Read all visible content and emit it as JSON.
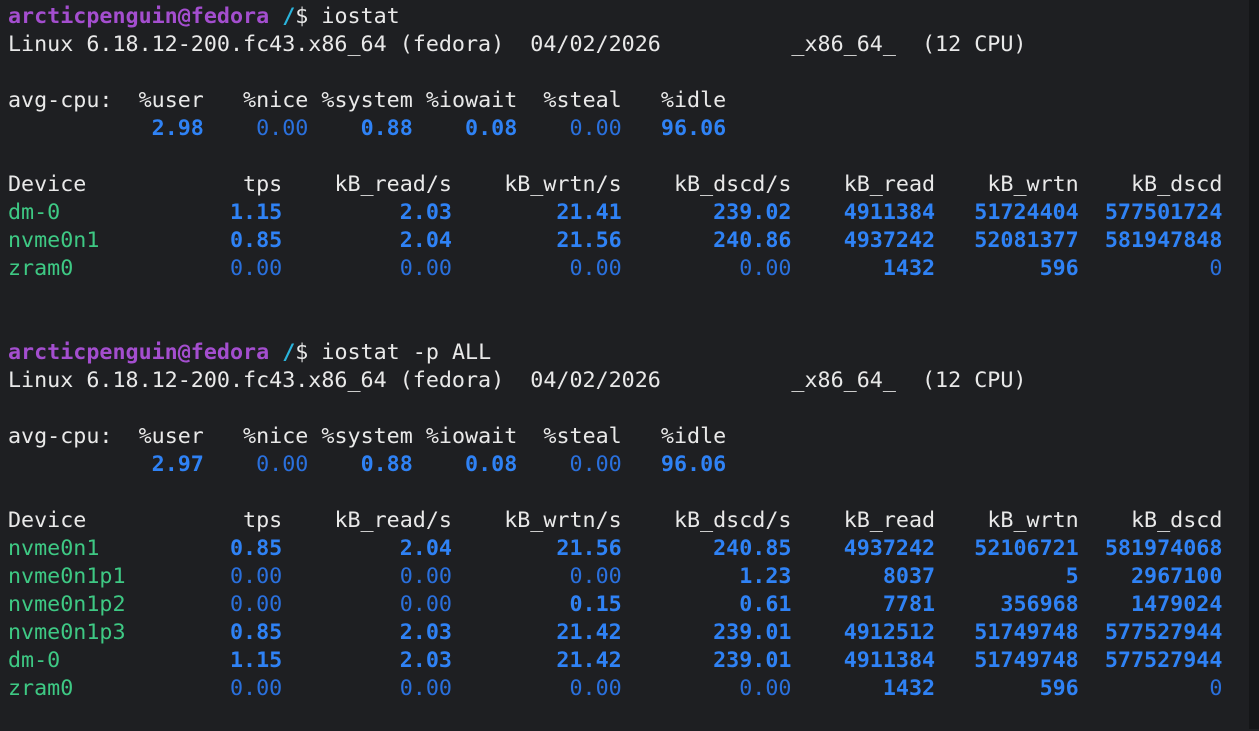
{
  "terminal": {
    "colors": {
      "background": "#1e1f22",
      "scrollbar_track": "#151618",
      "foreground": "#e9e9e9",
      "prompt_user": "#a44ecf",
      "prompt_path": "#2ab4dc",
      "device_name": "#3ec984",
      "value_nonzero": "#2f82f5",
      "value_zero": "#2a70dd"
    },
    "sessions": [
      {
        "prompt": {
          "user_host": "arcticpenguin@fedora",
          "path": "/",
          "symbol": "$"
        },
        "command": "iostat",
        "system_line": {
          "kernel": "Linux 6.18.12-200.fc43.x86_64 (fedora)",
          "date": "04/02/2026",
          "arch": "_x86_64_",
          "cpus": "(12 CPU)"
        },
        "avg_cpu": {
          "label": "avg-cpu:",
          "headers": [
            "%user",
            "%nice",
            "%system",
            "%iowait",
            "%steal",
            "%idle"
          ],
          "values": [
            "2.98",
            "0.00",
            "0.88",
            "0.08",
            "0.00",
            "96.06"
          ]
        },
        "device_table": {
          "headers": [
            "Device",
            "tps",
            "kB_read/s",
            "kB_wrtn/s",
            "kB_dscd/s",
            "kB_read",
            "kB_wrtn",
            "kB_dscd"
          ],
          "rows": [
            {
              "device": "dm-0",
              "values": [
                "1.15",
                "2.03",
                "21.41",
                "239.02",
                "4911384",
                "51724404",
                "577501724"
              ]
            },
            {
              "device": "nvme0n1",
              "values": [
                "0.85",
                "2.04",
                "21.56",
                "240.86",
                "4937242",
                "52081377",
                "581947848"
              ]
            },
            {
              "device": "zram0",
              "values": [
                "0.00",
                "0.00",
                "0.00",
                "0.00",
                "1432",
                "596",
                "0"
              ]
            }
          ]
        }
      },
      {
        "prompt": {
          "user_host": "arcticpenguin@fedora",
          "path": "/",
          "symbol": "$"
        },
        "command": "iostat -p ALL",
        "system_line": {
          "kernel": "Linux 6.18.12-200.fc43.x86_64 (fedora)",
          "date": "04/02/2026",
          "arch": "_x86_64_",
          "cpus": "(12 CPU)"
        },
        "avg_cpu": {
          "label": "avg-cpu:",
          "headers": [
            "%user",
            "%nice",
            "%system",
            "%iowait",
            "%steal",
            "%idle"
          ],
          "values": [
            "2.97",
            "0.00",
            "0.88",
            "0.08",
            "0.00",
            "96.06"
          ]
        },
        "device_table": {
          "headers": [
            "Device",
            "tps",
            "kB_read/s",
            "kB_wrtn/s",
            "kB_dscd/s",
            "kB_read",
            "kB_wrtn",
            "kB_dscd"
          ],
          "rows": [
            {
              "device": "nvme0n1",
              "values": [
                "0.85",
                "2.04",
                "21.56",
                "240.85",
                "4937242",
                "52106721",
                "581974068"
              ]
            },
            {
              "device": "nvme0n1p1",
              "values": [
                "0.00",
                "0.00",
                "0.00",
                "1.23",
                "8037",
                "5",
                "2967100"
              ]
            },
            {
              "device": "nvme0n1p2",
              "values": [
                "0.00",
                "0.00",
                "0.15",
                "0.61",
                "7781",
                "356968",
                "1479024"
              ]
            },
            {
              "device": "nvme0n1p3",
              "values": [
                "0.85",
                "2.03",
                "21.42",
                "239.01",
                "4912512",
                "51749748",
                "577527944"
              ]
            },
            {
              "device": "dm-0",
              "values": [
                "1.15",
                "2.03",
                "21.42",
                "239.01",
                "4911384",
                "51749748",
                "577527944"
              ]
            },
            {
              "device": "zram0",
              "values": [
                "0.00",
                "0.00",
                "0.00",
                "0.00",
                "1432",
                "596",
                "0"
              ]
            }
          ]
        }
      }
    ]
  }
}
